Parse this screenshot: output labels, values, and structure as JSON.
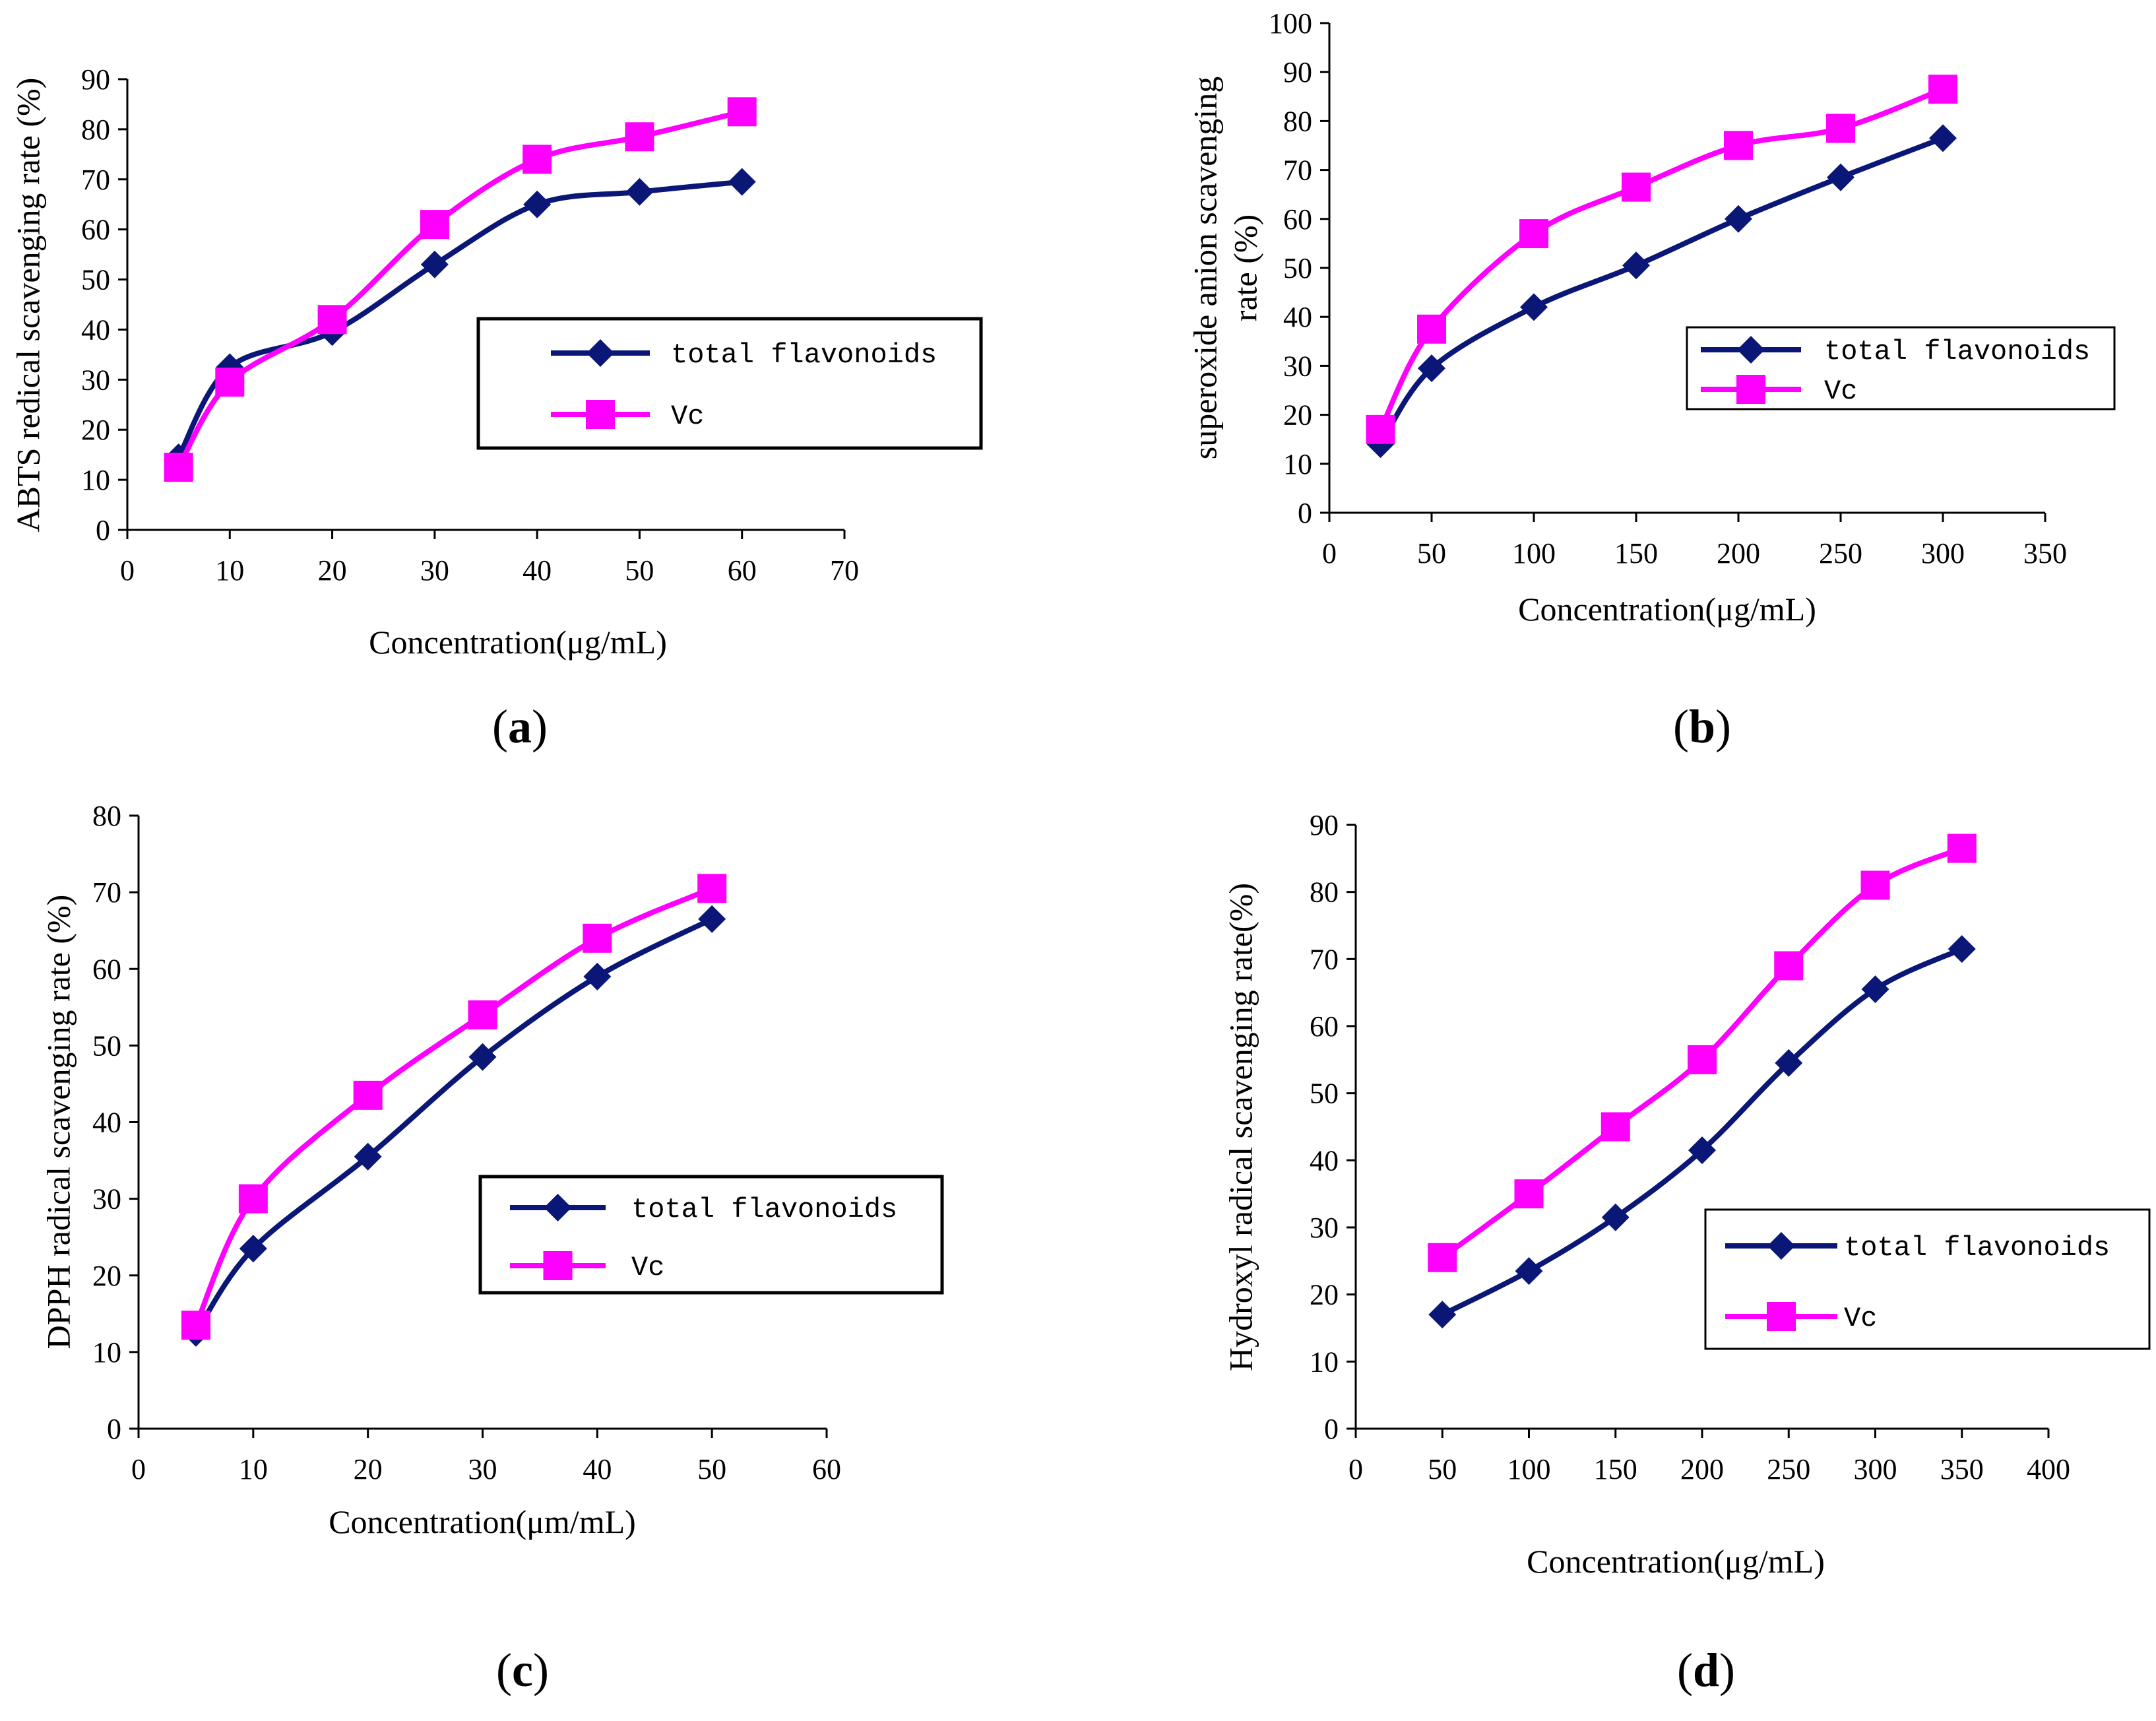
{
  "colors": {
    "total_flavonoids": "#0A1777",
    "vc": "#FF00FF",
    "axis": "#000000"
  },
  "chart_data": [
    {
      "id": "a",
      "type": "line",
      "panel_label": "a",
      "xlabel": "Concentration(μg/mL)",
      "ylabel": "ABTS redical scavenging rate (%)",
      "xlim": [
        0,
        70
      ],
      "ylim": [
        0,
        90
      ],
      "xticks": [
        0,
        10,
        20,
        30,
        40,
        50,
        60,
        70
      ],
      "yticks": [
        0,
        10,
        20,
        30,
        40,
        50,
        60,
        70,
        80,
        90
      ],
      "legend_position": "center-right",
      "series": [
        {
          "name": "total flavonoids",
          "marker": "diamond",
          "x": [
            5,
            10,
            20,
            30,
            40,
            50,
            60
          ],
          "values": [
            14.5,
            32.5,
            39.5,
            53,
            65,
            67.5,
            69.5
          ]
        },
        {
          "name": "Vc",
          "marker": "square",
          "x": [
            5,
            10,
            20,
            30,
            40,
            50,
            60
          ],
          "values": [
            12.5,
            29.5,
            42,
            61,
            74,
            78.5,
            83.5
          ]
        }
      ]
    },
    {
      "id": "b",
      "type": "line",
      "panel_label": "b",
      "xlabel": "Concentration(μg/mL)",
      "ylabel_lines": [
        "superoxide anion scavenging",
        "rate (%)"
      ],
      "xlim": [
        0,
        350
      ],
      "ylim": [
        0,
        100
      ],
      "xticks": [
        0,
        50,
        100,
        150,
        200,
        250,
        300,
        350
      ],
      "yticks": [
        0,
        10,
        20,
        30,
        40,
        50,
        60,
        70,
        80,
        90,
        100
      ],
      "legend_position": "center-right",
      "series": [
        {
          "name": "total flavonoids",
          "marker": "diamond",
          "x": [
            25,
            50,
            100,
            150,
            200,
            250,
            300
          ],
          "values": [
            14,
            29.5,
            42,
            50.5,
            60,
            68.5,
            76.5
          ]
        },
        {
          "name": "Vc",
          "marker": "square",
          "x": [
            25,
            50,
            100,
            150,
            200,
            250,
            300
          ],
          "values": [
            17,
            37.5,
            57,
            66.5,
            75,
            78.5,
            86.5
          ]
        }
      ]
    },
    {
      "id": "c",
      "type": "line",
      "panel_label": "c",
      "xlabel": "Concentration(μm/mL)",
      "ylabel": "DPPH radical scavenging rate (%)",
      "xlim": [
        0,
        60
      ],
      "ylim": [
        0,
        80
      ],
      "xticks": [
        0,
        10,
        20,
        30,
        40,
        50,
        60
      ],
      "yticks": [
        0,
        10,
        20,
        30,
        40,
        50,
        60,
        70,
        80
      ],
      "legend_position": "lower-right",
      "series": [
        {
          "name": "total flavonoids",
          "marker": "diamond",
          "x": [
            5,
            10,
            20,
            30,
            40,
            50
          ],
          "values": [
            12.5,
            23.5,
            35.5,
            48.5,
            59,
            66.5
          ]
        },
        {
          "name": "Vc",
          "marker": "square",
          "x": [
            5,
            10,
            20,
            30,
            40,
            50
          ],
          "values": [
            13.5,
            30,
            43.5,
            54,
            64,
            70.5
          ]
        }
      ]
    },
    {
      "id": "d",
      "type": "line",
      "panel_label": "d",
      "xlabel": "Concentration(μg/mL)",
      "ylabel": "Hydroxyl radical scavenging rate(%)",
      "xlim": [
        0,
        400
      ],
      "ylim": [
        0,
        90
      ],
      "xticks": [
        0,
        50,
        100,
        150,
        200,
        250,
        300,
        350,
        400
      ],
      "yticks": [
        0,
        10,
        20,
        30,
        40,
        50,
        60,
        70,
        80,
        90
      ],
      "legend_position": "lower-right",
      "series": [
        {
          "name": "total flavonoids",
          "marker": "diamond",
          "x": [
            50,
            100,
            150,
            200,
            250,
            300,
            350
          ],
          "values": [
            17,
            23.5,
            31.5,
            41.5,
            54.5,
            65.5,
            71.5
          ]
        },
        {
          "name": "Vc",
          "marker": "square",
          "x": [
            50,
            100,
            150,
            200,
            250,
            300,
            350
          ],
          "values": [
            25.5,
            35,
            45,
            55,
            69,
            81,
            86.5
          ]
        }
      ]
    }
  ]
}
